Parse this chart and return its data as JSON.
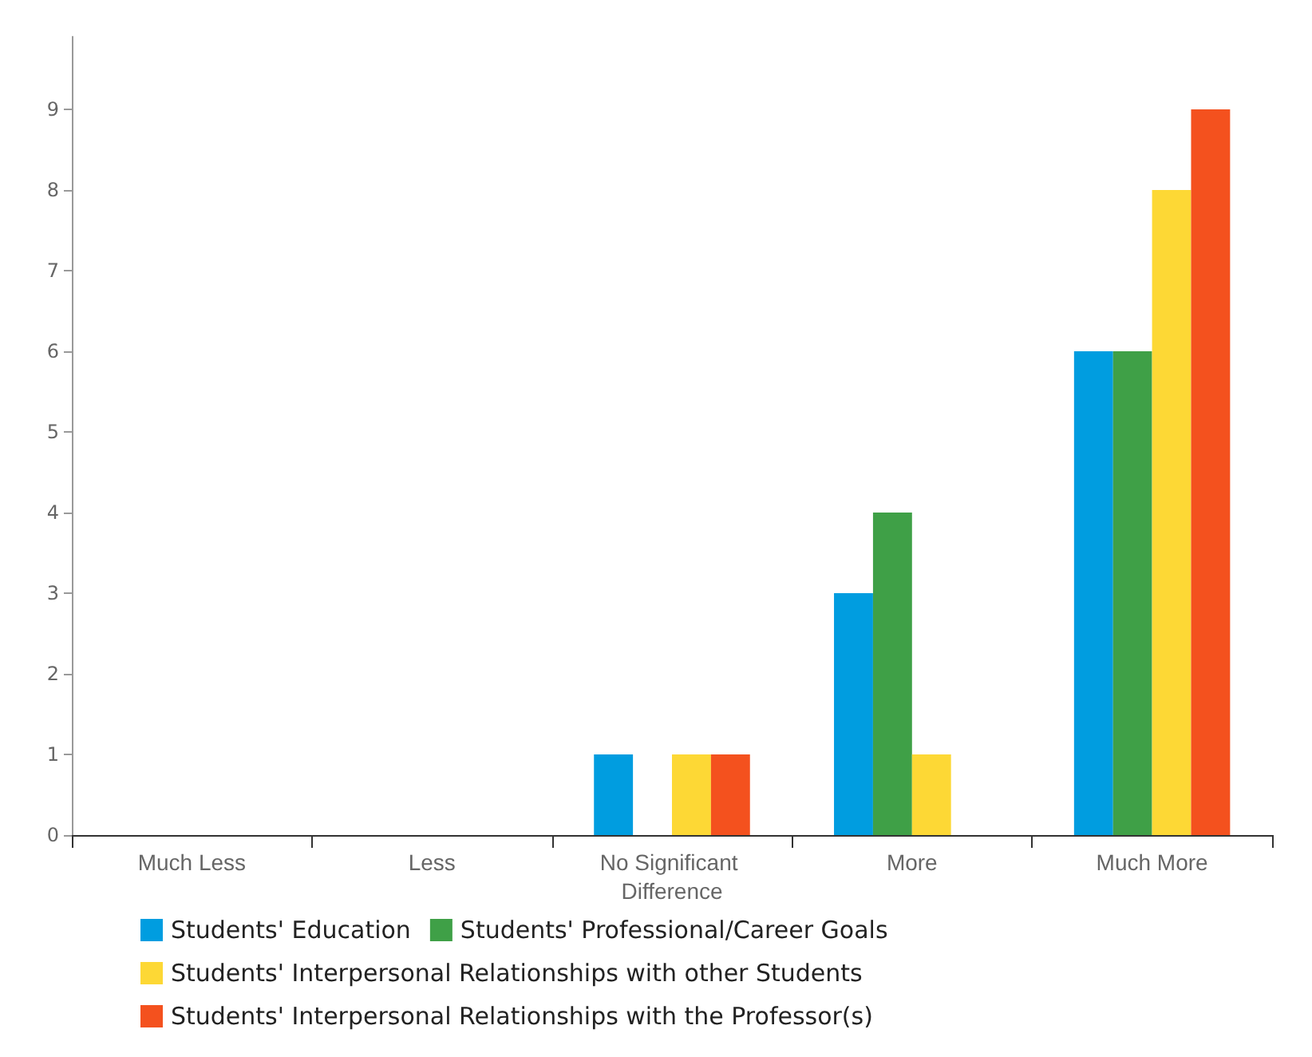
{
  "chart_data": {
    "type": "bar",
    "categories": [
      "Much Less",
      "Less",
      "No Significant Difference",
      "More",
      "Much More"
    ],
    "series": [
      {
        "name": "Students' Education",
        "color": "#009de0",
        "values": [
          0,
          0,
          1,
          3,
          6
        ]
      },
      {
        "name": "Students' Professional/Career Goals",
        "color": "#3fa047",
        "values": [
          0,
          0,
          0,
          4,
          6
        ]
      },
      {
        "name": "Students' Interpersonal Relationships with other Students",
        "color": "#fdd835",
        "values": [
          0,
          0,
          1,
          1,
          8
        ]
      },
      {
        "name": "Students' Interpersonal Relationships with the Professor(s)",
        "color": "#f4511e",
        "values": [
          0,
          0,
          1,
          0,
          9
        ]
      }
    ],
    "ylim": [
      0,
      9.9
    ],
    "yticks": [
      0,
      1,
      2,
      3,
      4,
      5,
      6,
      7,
      8,
      9
    ],
    "grid": false,
    "legend": "bottom"
  }
}
